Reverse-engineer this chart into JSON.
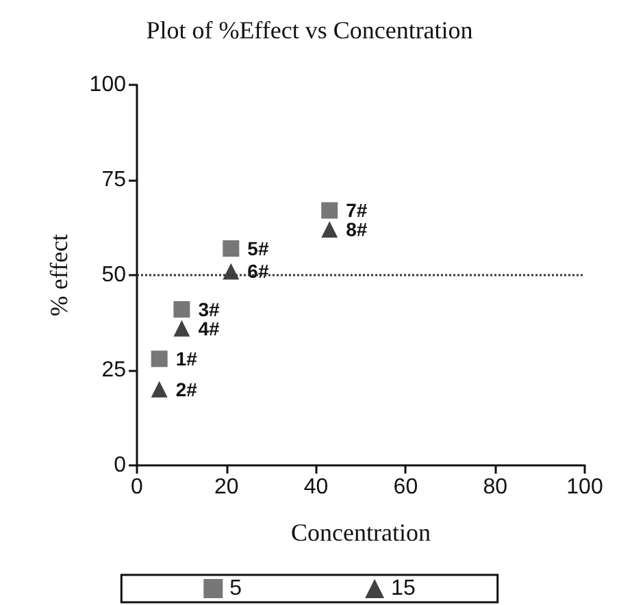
{
  "chart_data": {
    "type": "scatter",
    "title": "Plot of %Effect vs Concentration",
    "xlabel": "Concentration",
    "ylabel": "% effect",
    "x": [
      5,
      10,
      21,
      43
    ],
    "series": [
      {
        "name": "5",
        "color": "#555555",
        "marker": "square",
        "values": [
          28,
          41,
          57,
          67
        ]
      },
      {
        "name": "15",
        "color": "#111111",
        "marker": "triangle",
        "values": [
          20,
          36,
          51,
          62
        ]
      }
    ],
    "annotations": [
      {
        "text": "1#",
        "x": 5,
        "y": 28
      },
      {
        "text": "2#",
        "x": 5,
        "y": 20
      },
      {
        "text": "3#",
        "x": 10,
        "y": 41
      },
      {
        "text": "4#",
        "x": 10,
        "y": 36
      },
      {
        "text": "5#",
        "x": 21,
        "y": 57
      },
      {
        "text": "6#",
        "x": 21,
        "y": 51
      },
      {
        "text": "7#",
        "x": 43,
        "y": 67
      },
      {
        "text": "8#",
        "x": 43,
        "y": 62
      }
    ],
    "xlim": [
      0,
      100
    ],
    "xticks": [
      0,
      20,
      40,
      60,
      80,
      100
    ],
    "ylim": [
      0,
      100
    ],
    "yticks": [
      0,
      25,
      50,
      75,
      100
    ],
    "ref_lines": [
      {
        "axis": "y",
        "value": 50,
        "line_style": "dotted",
        "color": "#333333"
      }
    ],
    "grid": false,
    "legend": "bottom"
  }
}
